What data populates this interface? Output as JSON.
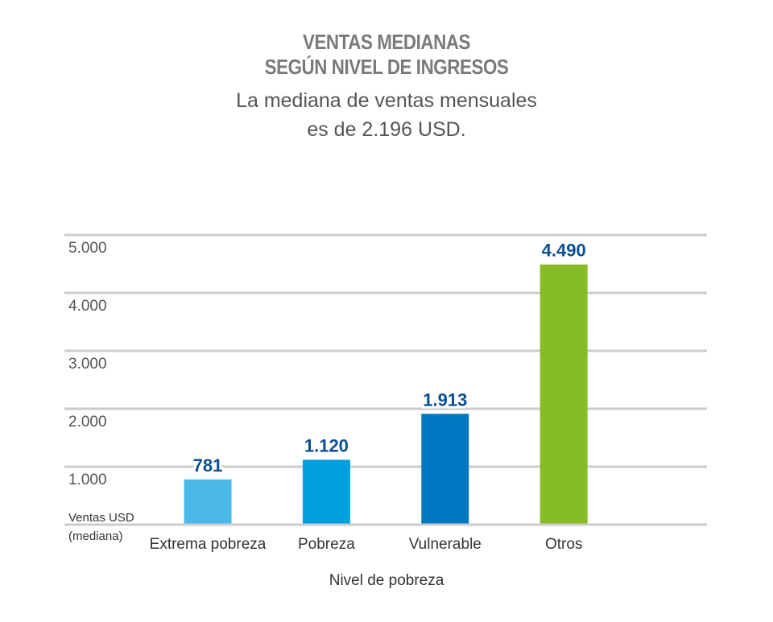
{
  "header": {
    "title_line1": "VENTAS MEDIANAS",
    "title_line2": "SEGÚN NIVEL DE INGRESOS",
    "subtitle_line1": "La mediana de ventas mensuales",
    "subtitle_line2": "es de 2.196 USD."
  },
  "chart_data": {
    "type": "bar",
    "categories": [
      "Extrema pobreza",
      "Pobreza",
      "Vulnerable",
      "Otros"
    ],
    "values": [
      781,
      1120,
      1913,
      4490
    ],
    "value_labels": [
      "781",
      "1.120",
      "1.913",
      "4.490"
    ],
    "bar_colors": [
      "#4cb8ea",
      "#009fe0",
      "#0077c0",
      "#86bc25"
    ],
    "value_label_color": "#0a4f91",
    "ylim": [
      0,
      5000
    ],
    "yticks": [
      1000,
      2000,
      3000,
      4000,
      5000
    ],
    "ytick_labels": [
      "1.000",
      "2.000",
      "3.000",
      "4.000",
      "5.000"
    ],
    "ylabel_line1": "Ventas USD",
    "ylabel_line2": "(mediana)",
    "xlabel": "Nivel de pobreza",
    "grid": true
  }
}
